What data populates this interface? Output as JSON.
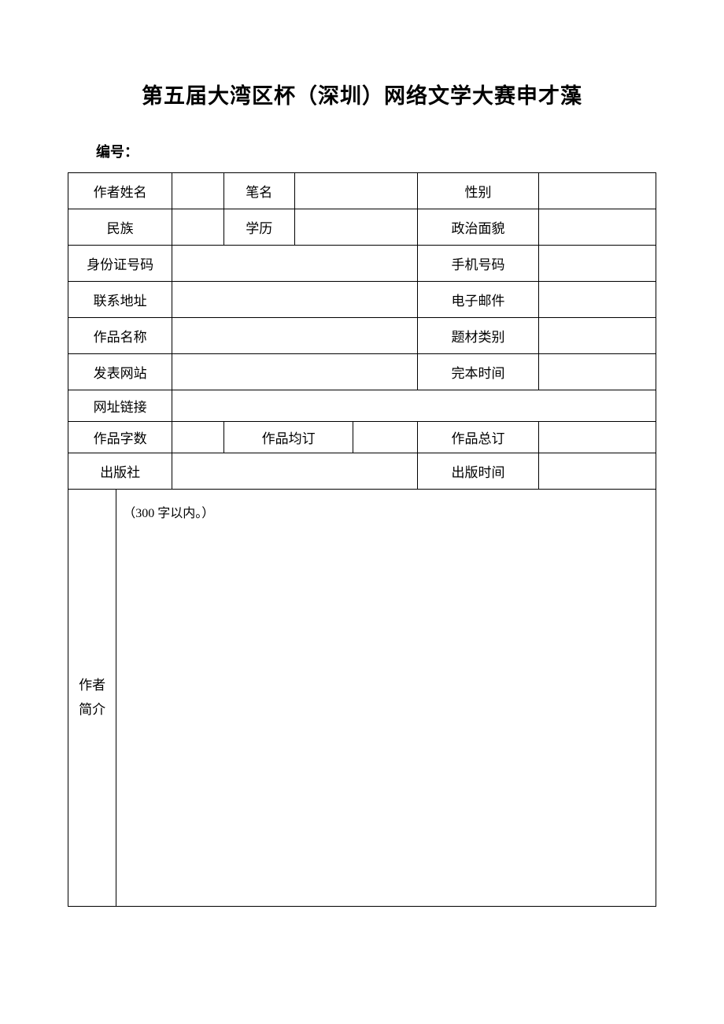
{
  "title": "第五届大湾区杯（深圳）网络文学大赛申才藻",
  "serial_label": "编号：",
  "labels": {
    "author_name": "作者姓名",
    "pen_name": "笔名",
    "gender": "性别",
    "ethnicity": "民族",
    "education": "学历",
    "political_status": "政治面貌",
    "id_number": "身份证号码",
    "phone": "手机号码",
    "address": "联系地址",
    "email": "电子邮件",
    "work_title": "作品名称",
    "subject_category": "题材类别",
    "publish_site": "发表网站",
    "completion_time": "完本时间",
    "url_link": "网址链接",
    "word_count": "作品字数",
    "avg_subscription": "作品均订",
    "total_subscription": "作品总订",
    "publisher": "出版社",
    "publish_time": "出版时间",
    "author_intro": "作者简介"
  },
  "intro_note": "（300 字以内。）",
  "table": {
    "border_color": "#000000",
    "background_color": "#ffffff",
    "font_size_body": 17,
    "font_size_title": 27,
    "col_widths_pct": [
      8.2,
      9.5,
      8.8,
      12.0,
      10.0,
      11.0,
      9.0,
      11.5,
      20.0
    ]
  }
}
